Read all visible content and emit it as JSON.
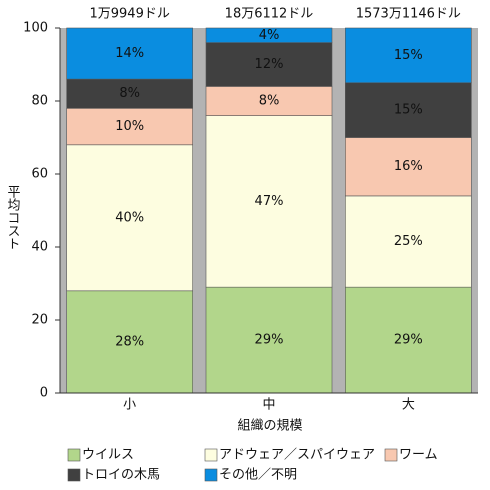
{
  "chart_data": {
    "type": "stacked_bar_100",
    "x_label": "組織の規模",
    "y_label": "平均コスト",
    "categories": [
      "小",
      "中",
      "大"
    ],
    "bar_top_labels": [
      "1万9949ドル",
      "18万6112ドル",
      "1573万1146ドル"
    ],
    "series": [
      {
        "name": "ウイルス",
        "color": "#b2d68b",
        "values": [
          28,
          29,
          29
        ],
        "value_labels": [
          "28%",
          "29%",
          "29%"
        ]
      },
      {
        "name": "アドウェア／スパイウェア",
        "color": "#fdfde0",
        "values": [
          40,
          47,
          25
        ],
        "value_labels": [
          "40%",
          "47%",
          "25%"
        ]
      },
      {
        "name": "ワーム",
        "color": "#f8c8b0",
        "values": [
          10,
          8,
          16
        ],
        "value_labels": [
          "10%",
          "8%",
          "16%"
        ]
      },
      {
        "name": "トロイの木馬",
        "color": "#404040",
        "values": [
          8,
          12,
          15
        ],
        "value_labels": [
          "8%",
          "12%",
          "15%"
        ]
      },
      {
        "name": "その他／不明",
        "color": "#0a8de0",
        "values": [
          14,
          4,
          15
        ],
        "value_labels": [
          "14%",
          "4%",
          "15%"
        ]
      }
    ],
    "ylim": [
      0,
      100
    ],
    "yticks": [
      0,
      20,
      40,
      60,
      80,
      100
    ],
    "plot_background": "#b3b3b3"
  }
}
